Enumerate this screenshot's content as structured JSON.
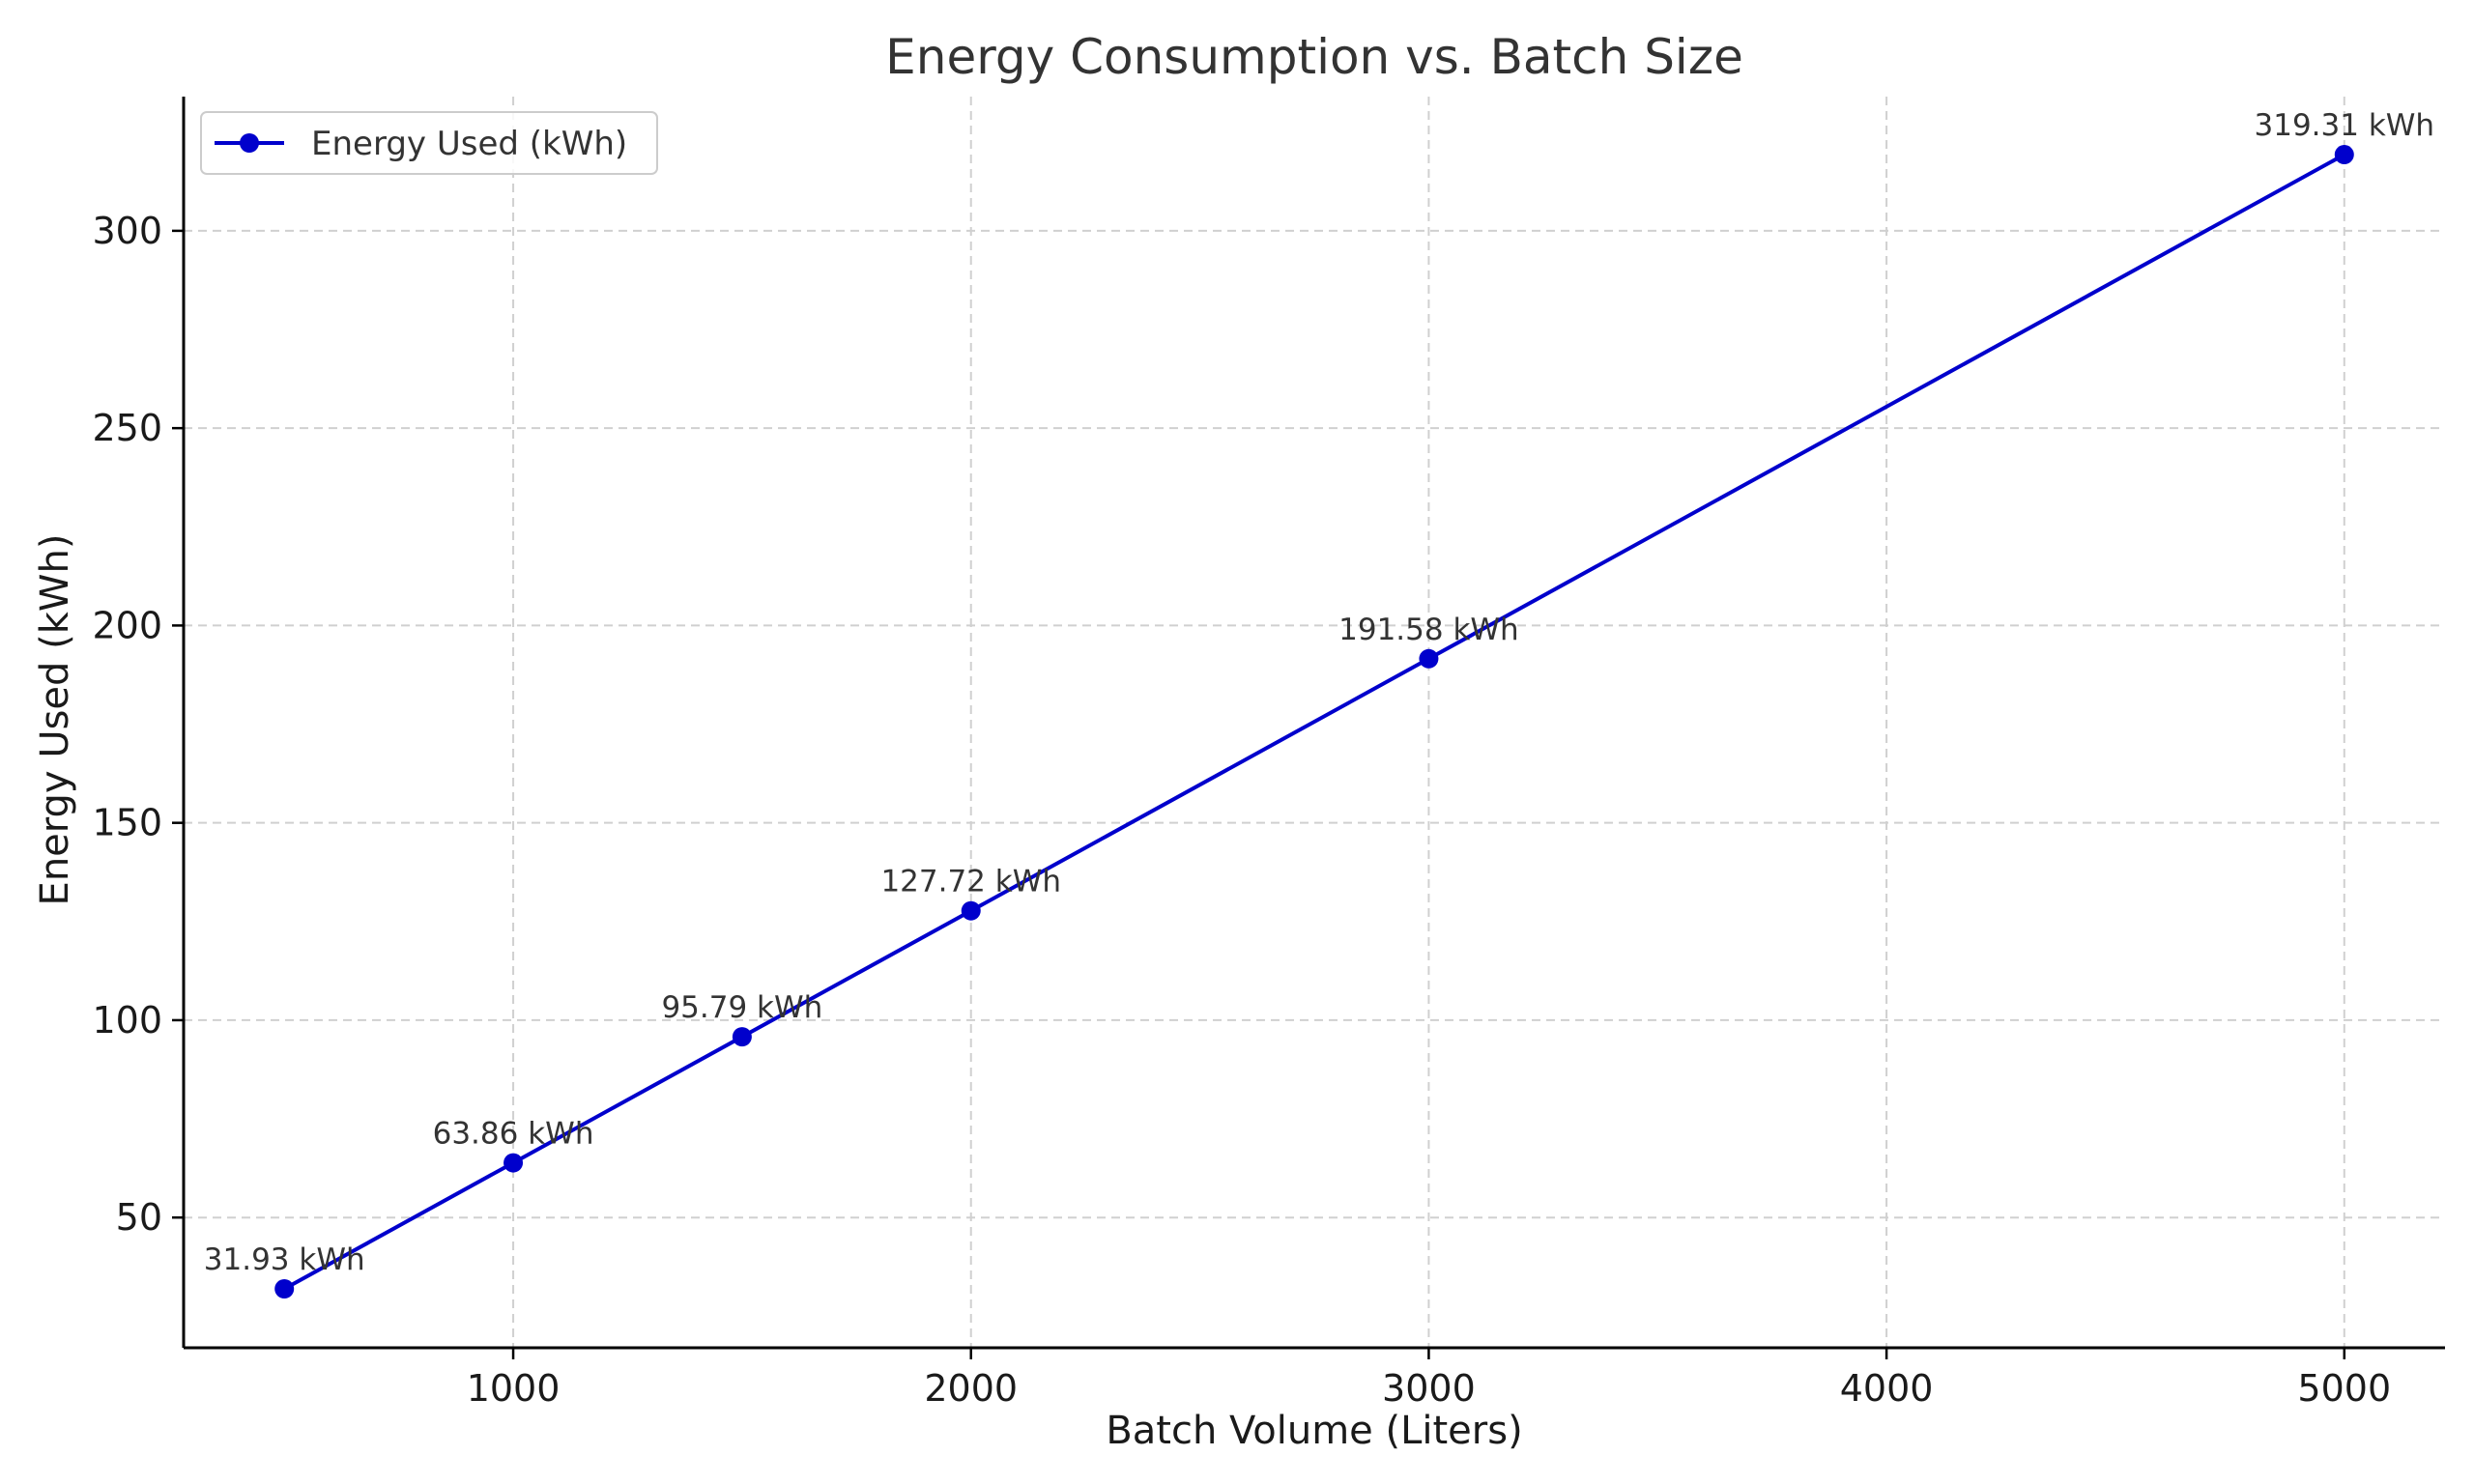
{
  "chart_data": {
    "type": "line",
    "title": "Energy Consumption vs. Batch Size",
    "xlabel": "Batch Volume (Liters)",
    "ylabel": "Energy Used (kWh)",
    "xlim": [
      280,
      5220
    ],
    "ylim": [
      17,
      334
    ],
    "x_ticks": [
      1000,
      2000,
      3000,
      4000,
      5000
    ],
    "y_ticks": [
      50,
      100,
      150,
      200,
      250,
      300
    ],
    "grid": true,
    "legend_position": "top-left",
    "series": [
      {
        "name": "Energy Used (kWh)",
        "color": "#0000cc",
        "marker": "circle",
        "x": [
          500,
          1000,
          1500,
          2000,
          3000,
          5000
        ],
        "y": [
          31.93,
          63.86,
          95.79,
          127.72,
          191.58,
          319.31
        ],
        "labels": [
          "31.93 kWh",
          "63.86 kWh",
          "95.79 kWh",
          "127.72 kWh",
          "191.58 kWh",
          "319.31 kWh"
        ]
      }
    ]
  }
}
